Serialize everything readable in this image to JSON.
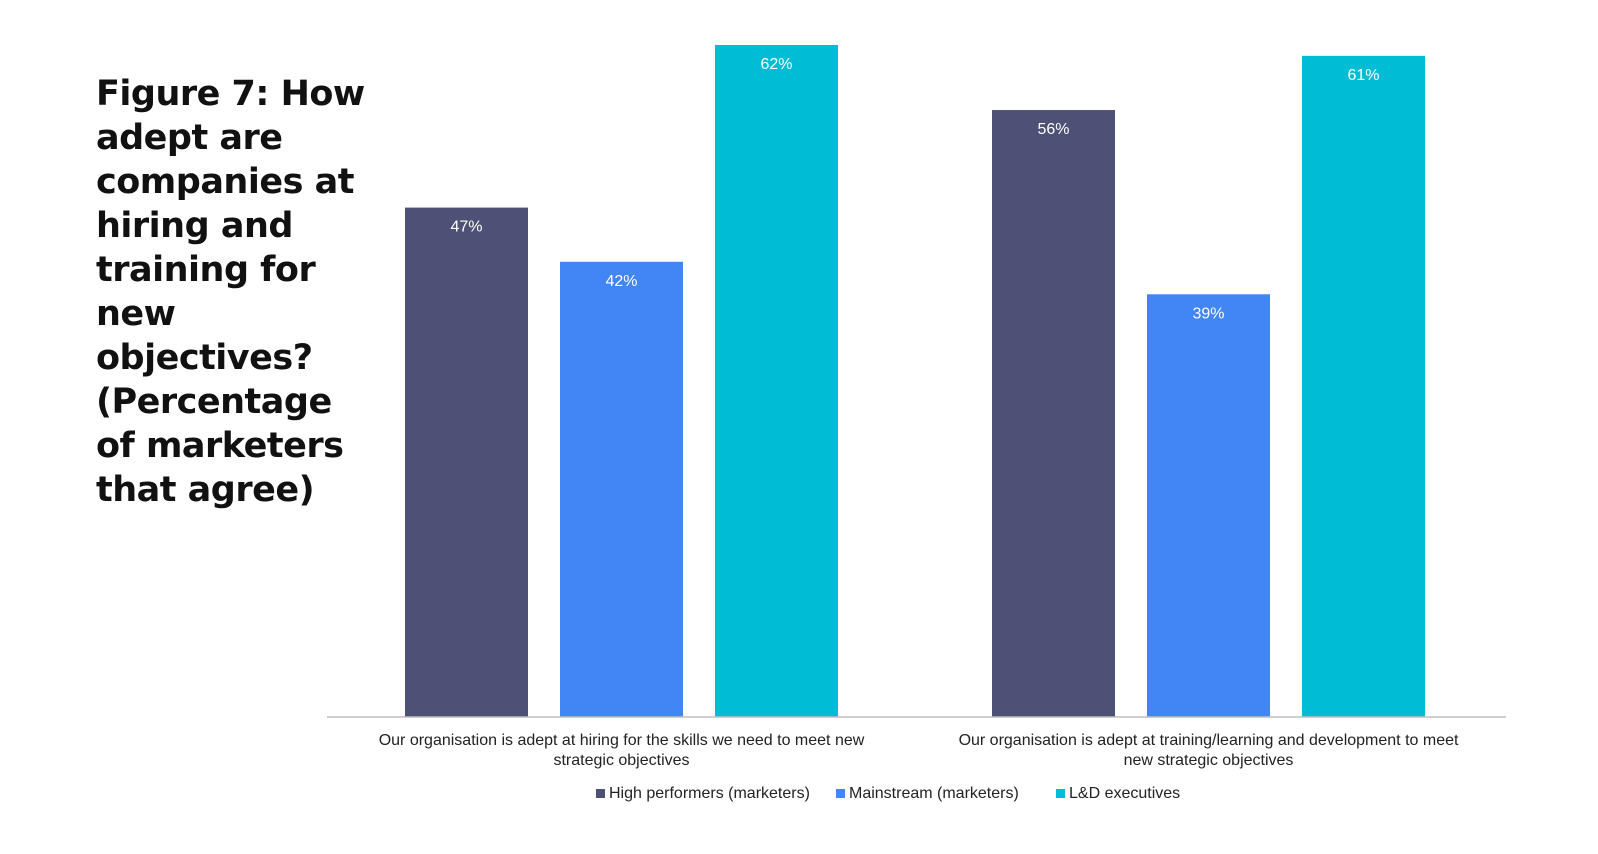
{
  "chart_data": {
    "type": "bar",
    "title": "Figure 7: How adept are companies at hiring and training for new objectives? (Percentage of marketers that agree)",
    "categories": [
      [
        "Our organisation is adept at hiring for the skills we need to meet new",
        "strategic objectives"
      ],
      [
        "Our organisation is adept at training/learning and development to meet",
        "new strategic objectives"
      ]
    ],
    "series": [
      {
        "name": "High performers (marketers)",
        "values": [
          47,
          56
        ],
        "labels": [
          "47%",
          "56%"
        ],
        "color": "#4e5175"
      },
      {
        "name": "Mainstream (marketers)",
        "values": [
          42,
          39
        ],
        "labels": [
          "42%",
          "39%"
        ],
        "color": "#4285f4"
      },
      {
        "name": "L&D executives",
        "values": [
          62,
          61
        ],
        "labels": [
          "62%",
          "61%"
        ],
        "color": "#00bcd4"
      }
    ],
    "ylim": [
      0,
      62
    ],
    "grid": false,
    "legend_position": "bottom",
    "xlabel": "",
    "ylabel": ""
  }
}
